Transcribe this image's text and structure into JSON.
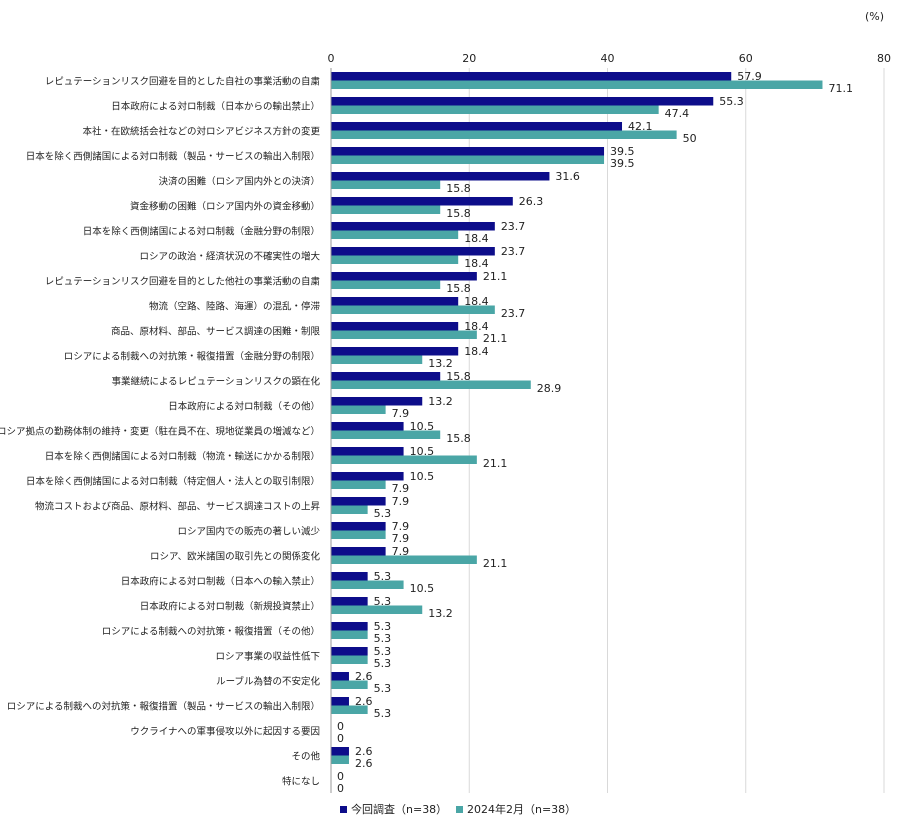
{
  "chart_data": {
    "type": "bar",
    "orientation": "horizontal",
    "unit_label": "(%)",
    "xlim": [
      0,
      80
    ],
    "ticks": [
      0,
      20,
      40,
      60,
      80
    ],
    "grid": true,
    "legend_position": "bottom",
    "colors": {
      "current": "#0d0d8a",
      "previous": "#4aa6a6"
    },
    "series": [
      {
        "name": "今回調査（n=38）",
        "key": "current"
      },
      {
        "name": "2024年2月（n=38）",
        "key": "previous"
      }
    ],
    "categories": [
      "レピュテーションリスク回避を目的とした自社の事業活動の自粛",
      "日本政府による対ロ制裁（日本からの輸出禁止）",
      "本社・在欧統括会社などの対ロシアビジネス方針の変更",
      "日本を除く西側諸国による対ロ制裁（製品・サービスの輸出入制限）",
      "決済の困難（ロシア国内外との決済）",
      "資金移動の困難（ロシア国内外の資金移動）",
      "日本を除く西側諸国による対ロ制裁（金融分野の制限）",
      "ロシアの政治・経済状況の不確実性の増大",
      "レピュテーションリスク回避を目的とした他社の事業活動の自粛",
      "物流（空路、陸路、海運）の混乱・停滞",
      "商品、原材料、部品、サービス調達の困難・制限",
      "ロシアによる制裁への対抗策・報復措置（金融分野の制限）",
      "事業継続によるレピュテーションリスクの顕在化",
      "日本政府による対ロ制裁（その他）",
      "ロシア拠点の勤務体制の維持・変更（駐在員不在、現地従業員の増減など）",
      "日本を除く西側諸国による対ロ制裁（物流・輸送にかかる制限）",
      "日本を除く西側諸国による対ロ制裁（特定個人・法人との取引制限）",
      "物流コストおよび商品、原材料、部品、サービス調達コストの上昇",
      "ロシア国内での販売の著しい減少",
      "ロシア、欧米諸国の取引先との関係変化",
      "日本政府による対ロ制裁（日本への輸入禁止）",
      "日本政府による対ロ制裁（新規投資禁止）",
      "ロシアによる制裁への対抗策・報復措置（その他）",
      "ロシア事業の収益性低下",
      "ルーブル為替の不安定化",
      "ロシアによる制裁への対抗策・報復措置（製品・サービスの輸出入制限）",
      "ウクライナへの軍事侵攻以外に起因する要因",
      "その他",
      "特になし"
    ],
    "values_current": [
      57.9,
      55.3,
      42.1,
      39.5,
      31.6,
      26.3,
      23.7,
      23.7,
      21.1,
      18.4,
      18.4,
      18.4,
      15.8,
      13.2,
      10.5,
      10.5,
      10.5,
      7.9,
      7.9,
      7.9,
      5.3,
      5.3,
      5.3,
      5.3,
      2.6,
      2.6,
      0,
      2.6,
      0
    ],
    "values_previous": [
      71.1,
      47.4,
      50.0,
      39.5,
      15.8,
      15.8,
      18.4,
      18.4,
      15.8,
      23.7,
      21.1,
      13.2,
      28.9,
      7.9,
      15.8,
      21.1,
      7.9,
      5.3,
      7.9,
      21.1,
      10.5,
      13.2,
      5.3,
      5.3,
      5.3,
      5.3,
      0,
      2.6,
      0
    ]
  }
}
